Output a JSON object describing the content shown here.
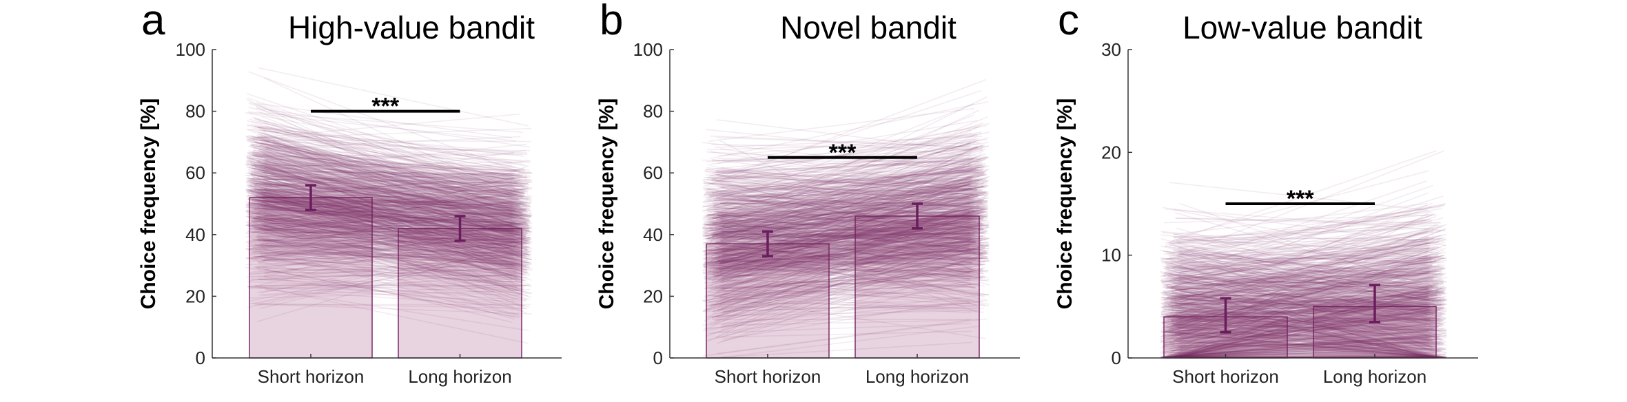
{
  "colors": {
    "bar_fill": "#e8d3e0",
    "bar_edge": "#7b2a68",
    "line": "#7b2a68",
    "errorbar": "#6a1d5c",
    "sig_line": "#000000"
  },
  "chart_data": [
    {
      "type": "bar",
      "panel_letter": "a",
      "title": "High-value bandit",
      "ylabel": "Choice frequency [%]",
      "xlabel": "",
      "categories": [
        "Short horizon",
        "Long horizon"
      ],
      "values": [
        52,
        42
      ],
      "error": [
        [
          48,
          56
        ],
        [
          38,
          46
        ]
      ],
      "ylim": [
        0,
        100
      ],
      "yticks": [
        0,
        20,
        40,
        60,
        80,
        100
      ],
      "individual_lines": {
        "start_mean": 52,
        "start_sd": 14,
        "end_mean": 42,
        "end_sd": 12
      },
      "significance": {
        "label": "***",
        "y": 80
      }
    },
    {
      "type": "bar",
      "panel_letter": "b",
      "title": "Novel bandit",
      "ylabel": "Choice frequency [%]",
      "xlabel": "",
      "categories": [
        "Short horizon",
        "Long horizon"
      ],
      "values": [
        37,
        46
      ],
      "error": [
        [
          33,
          41
        ],
        [
          42,
          50
        ]
      ],
      "ylim": [
        0,
        100
      ],
      "yticks": [
        0,
        20,
        40,
        60,
        80,
        100
      ],
      "individual_lines": {
        "start_mean": 37,
        "start_sd": 14,
        "end_mean": 46,
        "end_sd": 14
      },
      "significance": {
        "label": "***",
        "y": 65
      }
    },
    {
      "type": "bar",
      "panel_letter": "c",
      "title": "Low-value bandit",
      "ylabel": "Choice frequency [%]",
      "xlabel": "",
      "categories": [
        "Short horizon",
        "Long horizon"
      ],
      "values": [
        4,
        5
      ],
      "error": [
        [
          2.5,
          5.8
        ],
        [
          3.5,
          7.1
        ]
      ],
      "ylim": [
        0,
        30
      ],
      "yticks": [
        0,
        10,
        20,
        30
      ],
      "individual_lines": {
        "start_mean": 4,
        "start_sd": 4,
        "end_mean": 5,
        "end_sd": 4.5
      },
      "significance": {
        "label": "***",
        "y": 15
      }
    }
  ]
}
